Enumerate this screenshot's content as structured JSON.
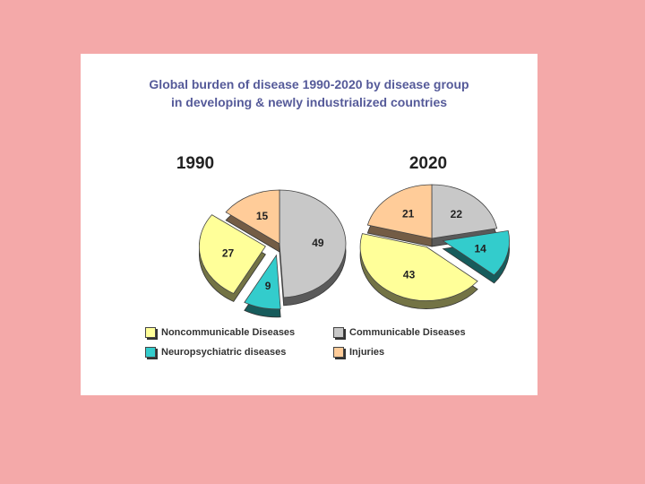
{
  "chart_data": [
    {
      "type": "pie",
      "title": "Global burden of disease 1990-2020 by disease group",
      "subtitle": "in developing & newly industrialized countries",
      "label": "1990",
      "slices": [
        {
          "name": "Communicable Diseases",
          "value": 49,
          "color": "#c8c8c8"
        },
        {
          "name": "Neuropsychiatric diseases",
          "value": 9,
          "color": "#33cccc"
        },
        {
          "name": "Noncommunicable Diseases",
          "value": 27,
          "color": "#ffff99"
        },
        {
          "name": "Injuries",
          "value": 15,
          "color": "#ffcc99"
        }
      ]
    },
    {
      "type": "pie",
      "label": "2020",
      "slices": [
        {
          "name": "Communicable Diseases",
          "value": 22,
          "color": "#c8c8c8"
        },
        {
          "name": "Neuropsychiatric diseases",
          "value": 14,
          "color": "#33cccc"
        },
        {
          "name": "Noncommunicable Diseases",
          "value": 43,
          "color": "#ffff99"
        },
        {
          "name": "Injuries",
          "value": 21,
          "color": "#ffcc99"
        }
      ]
    }
  ],
  "title_line1": "Global burden of disease 1990-2020 by disease group",
  "title_line2": "in developing & newly industrialized countries",
  "legend": [
    {
      "label": "Noncommunicable Diseases",
      "color": "#ffff99"
    },
    {
      "label": "Communicable Diseases",
      "color": "#c8c8c8"
    },
    {
      "label": "Neuropsychiatric diseases",
      "color": "#33cccc"
    },
    {
      "label": "Injuries",
      "color": "#ffcc99"
    }
  ]
}
